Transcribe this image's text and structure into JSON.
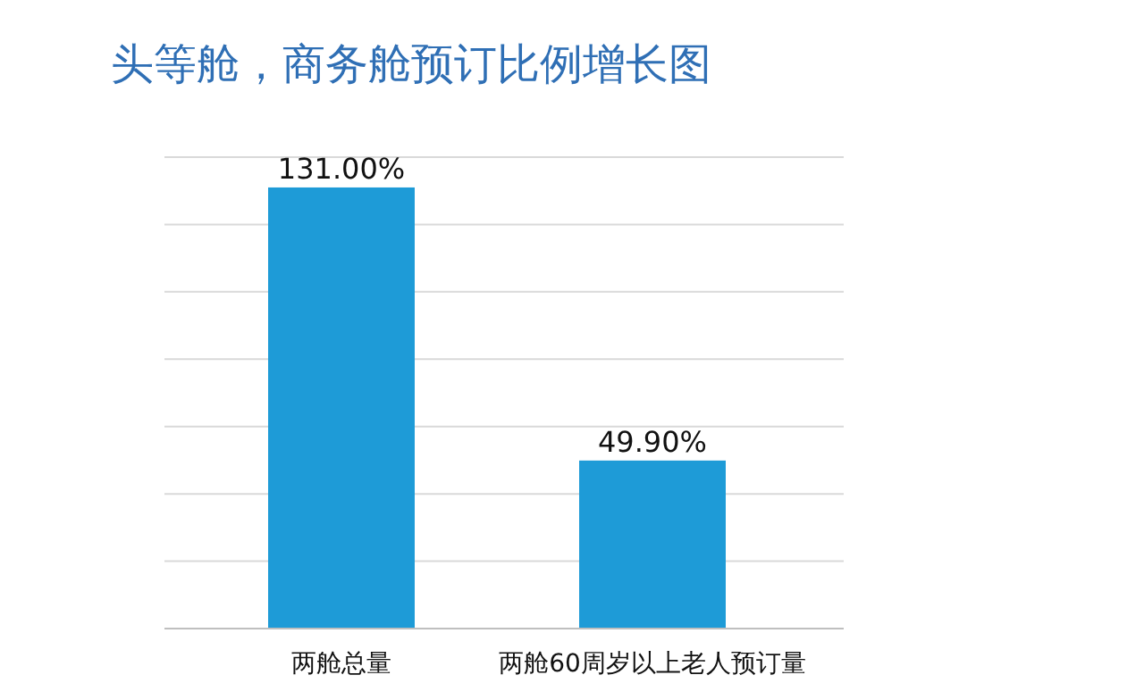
{
  "chart_data": {
    "type": "bar",
    "title": "头等舱，商务舱预订比例增长图",
    "categories": [
      "两舱总量",
      "两舱60周岁以上老人预订量"
    ],
    "values": [
      131.0,
      49.9
    ],
    "value_labels": [
      "131.00%",
      "49.90%"
    ],
    "color": "#1e9bd7",
    "ylim": [
      0,
      140
    ],
    "yticks": [
      {
        "value": 0,
        "label": null
      },
      {
        "value": 20,
        "label": null
      },
      {
        "value": 40,
        "label": null
      },
      {
        "value": 60,
        "label": null
      },
      {
        "value": 80,
        "label": null
      },
      {
        "value": 100,
        "label": null
      },
      {
        "value": 120,
        "label": null
      },
      {
        "value": 140,
        "label": null
      }
    ],
    "grid": "y",
    "tick_labels": "x"
  }
}
